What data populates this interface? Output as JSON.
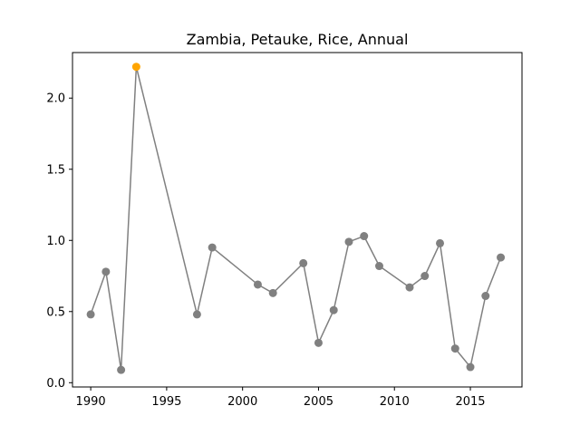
{
  "chart_data": {
    "type": "line",
    "title": "Zambia, Petauke, Rice, Annual",
    "xlabel": "",
    "ylabel": "",
    "xlim": [
      1988.8,
      2018.4
    ],
    "ylim": [
      -0.03,
      2.32
    ],
    "xticks": [
      1990,
      1995,
      2000,
      2005,
      2010,
      2015
    ],
    "yticks": [
      0.0,
      0.5,
      1.0,
      1.5,
      2.0
    ],
    "ytick_labels": [
      "0.0",
      "0.5",
      "1.0",
      "1.5",
      "2.0"
    ],
    "grid": false,
    "series": [
      {
        "x": [
          1990,
          1991,
          1992,
          1993,
          1997,
          1998,
          2001,
          2002,
          2004,
          2005,
          2006,
          2007,
          2008,
          2009,
          2011,
          2012,
          2013,
          2014,
          2015,
          2016,
          2017
        ],
        "values": [
          0.48,
          0.78,
          0.09,
          2.22,
          0.48,
          0.95,
          0.69,
          0.63,
          0.84,
          0.28,
          0.51,
          0.99,
          1.03,
          0.82,
          0.67,
          0.75,
          0.98,
          0.24,
          0.11,
          0.61,
          0.88
        ],
        "color": "#808080",
        "highlight_index": 3,
        "highlight_color": "#FFA500"
      }
    ]
  }
}
